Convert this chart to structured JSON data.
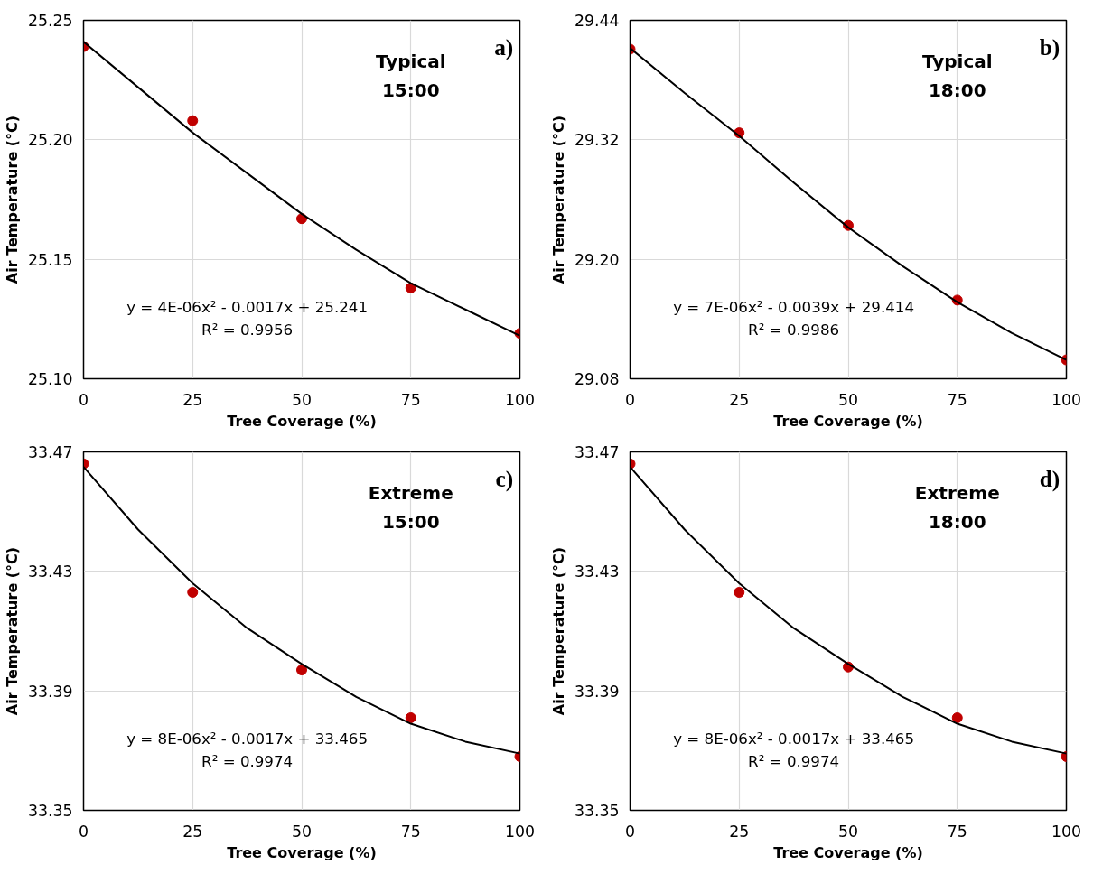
{
  "chart_data": [
    {
      "type": "scatter",
      "xlabel": "Tree Coverage (%)",
      "ylabel": "Air Temperature (°C)",
      "xlim": [
        0,
        100
      ],
      "xticks": [
        0,
        25,
        50,
        75,
        100
      ],
      "ylim": [
        25.1,
        25.25
      ],
      "yticks": [
        {
          "value": 25.1,
          "label": "25.10"
        },
        {
          "value": 25.15,
          "label": "25.15"
        },
        {
          "value": 25.2,
          "label": "25.20"
        },
        {
          "value": 25.25,
          "label": "25.25"
        }
      ],
      "grid": true,
      "annotations": [
        "a)",
        "Typical",
        "15:00",
        "y = 4E-06x² - 0.0017x + 25.241",
        "R² = 0.9956"
      ],
      "series": [
        {
          "marker": "circle",
          "color": "#c00000",
          "x": [
            0,
            25,
            50,
            75,
            100
          ],
          "values": [
            25.239,
            25.208,
            25.167,
            25.138,
            25.119
          ]
        },
        {
          "type": "line",
          "color": "#000000",
          "line_style": "solid",
          "x": [
            0,
            12.5,
            25,
            37.5,
            50,
            62.5,
            75,
            87.5,
            100
          ],
          "values": [
            25.241,
            25.222,
            25.203,
            25.186,
            25.169,
            25.154,
            25.14,
            25.129,
            25.118
          ]
        }
      ]
    },
    {
      "type": "scatter",
      "xlabel": "Tree Coverage (%)",
      "ylabel": "Air Temperature (°C)",
      "xlim": [
        0,
        100
      ],
      "xticks": [
        0,
        25,
        50,
        75,
        100
      ],
      "ylim": [
        29.08,
        29.44
      ],
      "yticks": [
        29.08,
        {
          "value": 29.2,
          "label": "29.20"
        },
        29.32,
        29.44
      ],
      "grid": true,
      "annotations": [
        "b)",
        "Typical",
        "18:00",
        "y = 7E-06x² - 0.0039x + 29.414",
        "R² = 0.9986"
      ],
      "series": [
        {
          "marker": "circle",
          "color": "#c00000",
          "x": [
            0,
            25,
            50,
            75,
            100
          ],
          "values": [
            29.411,
            29.327,
            29.234,
            29.159,
            29.099
          ]
        },
        {
          "type": "line",
          "color": "#000000",
          "line_style": "solid",
          "x": [
            0,
            12.5,
            25,
            37.5,
            50,
            62.5,
            75,
            87.5,
            100
          ],
          "values": [
            29.412,
            29.367,
            29.324,
            29.277,
            29.232,
            29.193,
            29.157,
            29.126,
            29.099
          ]
        }
      ]
    },
    {
      "type": "scatter",
      "xlabel": "Tree Coverage (%)",
      "ylabel": "Air Temperature (°C)",
      "xlim": [
        0,
        100
      ],
      "xticks": [
        0,
        25,
        50,
        75,
        100
      ],
      "ylim": [
        33.35,
        33.47
      ],
      "yticks": [
        33.35,
        33.39,
        33.43,
        33.47
      ],
      "grid": true,
      "annotations": [
        "c)",
        "Extreme",
        "15:00",
        "y = 8E-06x² - 0.0017x + 33.465",
        "R² = 0.9974"
      ],
      "series": [
        {
          "marker": "circle",
          "color": "#c00000",
          "x": [
            0,
            25,
            50,
            75,
            100
          ],
          "values": [
            33.466,
            33.423,
            33.397,
            33.381,
            33.368
          ]
        },
        {
          "type": "line",
          "color": "#000000",
          "line_style": "solid",
          "x": [
            0,
            12.5,
            25,
            37.5,
            50,
            62.5,
            75,
            87.5,
            100
          ],
          "values": [
            33.465,
            33.444,
            33.426,
            33.411,
            33.399,
            33.388,
            33.379,
            33.373,
            33.369
          ]
        }
      ]
    },
    {
      "type": "scatter",
      "xlabel": "Tree Coverage (%)",
      "ylabel": "Air Temperature (°C)",
      "xlim": [
        0,
        100
      ],
      "xticks": [
        0,
        25,
        50,
        75,
        100
      ],
      "ylim": [
        33.35,
        33.47
      ],
      "yticks": [
        33.35,
        33.39,
        33.43,
        33.47
      ],
      "grid": true,
      "annotations": [
        "d)",
        "Extreme",
        "18:00",
        "y = 8E-06x² - 0.0017x + 33.465",
        "R² = 0.9974"
      ],
      "series": [
        {
          "marker": "circle",
          "color": "#c00000",
          "x": [
            0,
            25,
            50,
            75,
            100
          ],
          "values": [
            33.466,
            33.423,
            33.398,
            33.381,
            33.368
          ]
        },
        {
          "type": "line",
          "color": "#000000",
          "line_style": "solid",
          "x": [
            0,
            12.5,
            25,
            37.5,
            50,
            62.5,
            75,
            87.5,
            100
          ],
          "values": [
            33.465,
            33.444,
            33.426,
            33.411,
            33.399,
            33.388,
            33.379,
            33.373,
            33.369
          ]
        }
      ]
    }
  ]
}
